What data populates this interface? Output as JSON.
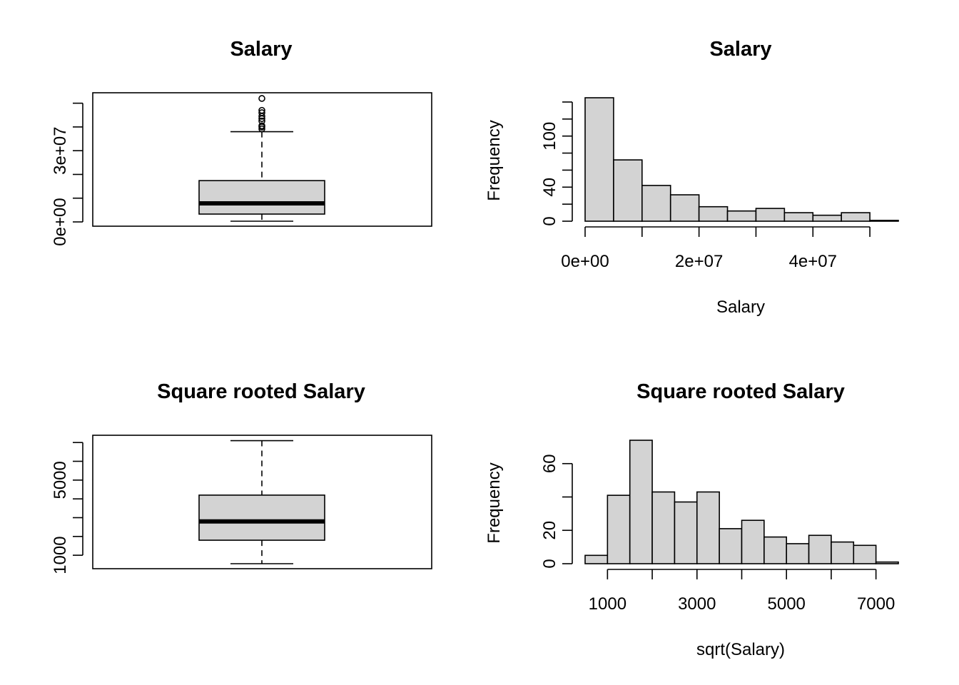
{
  "chart_data": [
    {
      "type": "boxplot",
      "title": "Salary",
      "xlabel": "",
      "ylabel": "",
      "ylim": [
        0,
        55000000
      ],
      "y_tick_values": [
        0,
        10000000,
        20000000,
        30000000,
        40000000,
        50000000
      ],
      "y_tick_labels": [
        "0e+00",
        "",
        "",
        "3e+07",
        "",
        ""
      ],
      "box": {
        "whisker_low": 300000,
        "q1": 3300000,
        "median": 7800000,
        "q3": 17400000,
        "whisker_high": 38000000
      },
      "outliers": [
        39200000,
        40000000,
        40500000,
        42500000,
        43500000,
        44500000,
        46000000,
        47000000,
        52000000
      ]
    },
    {
      "type": "histogram",
      "title": "Salary",
      "xlabel": "Salary",
      "ylabel": "Frequency",
      "xlim": [
        0,
        55000000
      ],
      "ylim": [
        0,
        145
      ],
      "x_tick_values": [
        0,
        10000000,
        20000000,
        30000000,
        40000000,
        50000000
      ],
      "x_tick_labels": [
        "0e+00",
        "",
        "2e+07",
        "",
        "4e+07",
        ""
      ],
      "y_tick_values": [
        0,
        20,
        40,
        60,
        80,
        100,
        120,
        140
      ],
      "y_tick_labels": [
        "0",
        "",
        "40",
        "",
        "",
        "100",
        "",
        ""
      ],
      "bin_edges": [
        0,
        5000000,
        10000000,
        15000000,
        20000000,
        25000000,
        30000000,
        35000000,
        40000000,
        45000000,
        50000000,
        55000000
      ],
      "counts": [
        145,
        72,
        42,
        31,
        17,
        12,
        15,
        10,
        7,
        10,
        1
      ]
    },
    {
      "type": "boxplot",
      "title": "Square rooted Salary",
      "xlabel": "",
      "ylabel": "",
      "ylim": [
        550,
        7500
      ],
      "y_tick_values": [
        1000,
        2000,
        3000,
        4000,
        5000,
        6000,
        7000
      ],
      "y_tick_labels": [
        "1000",
        "",
        "",
        "",
        "5000",
        "",
        ""
      ],
      "box": {
        "whisker_low": 550,
        "q1": 1800,
        "median": 2800,
        "q3": 4200,
        "whisker_high": 7100
      },
      "outliers": []
    },
    {
      "type": "histogram",
      "title": "Square rooted Salary",
      "xlabel": "sqrt(Salary)",
      "ylabel": "Frequency",
      "xlim": [
        500,
        7500
      ],
      "ylim": [
        0,
        74
      ],
      "x_tick_values": [
        1000,
        2000,
        3000,
        4000,
        5000,
        6000,
        7000
      ],
      "x_tick_labels": [
        "1000",
        "",
        "3000",
        "",
        "5000",
        "",
        "7000"
      ],
      "y_tick_values": [
        0,
        20,
        40,
        60
      ],
      "y_tick_labels": [
        "0",
        "20",
        "",
        "60"
      ],
      "bin_edges": [
        500,
        1000,
        1500,
        2000,
        2500,
        3000,
        3500,
        4000,
        4500,
        5000,
        5500,
        6000,
        6500,
        7000,
        7500
      ],
      "counts": [
        5,
        41,
        74,
        43,
        37,
        43,
        21,
        26,
        16,
        12,
        17,
        13,
        11,
        1
      ]
    }
  ]
}
